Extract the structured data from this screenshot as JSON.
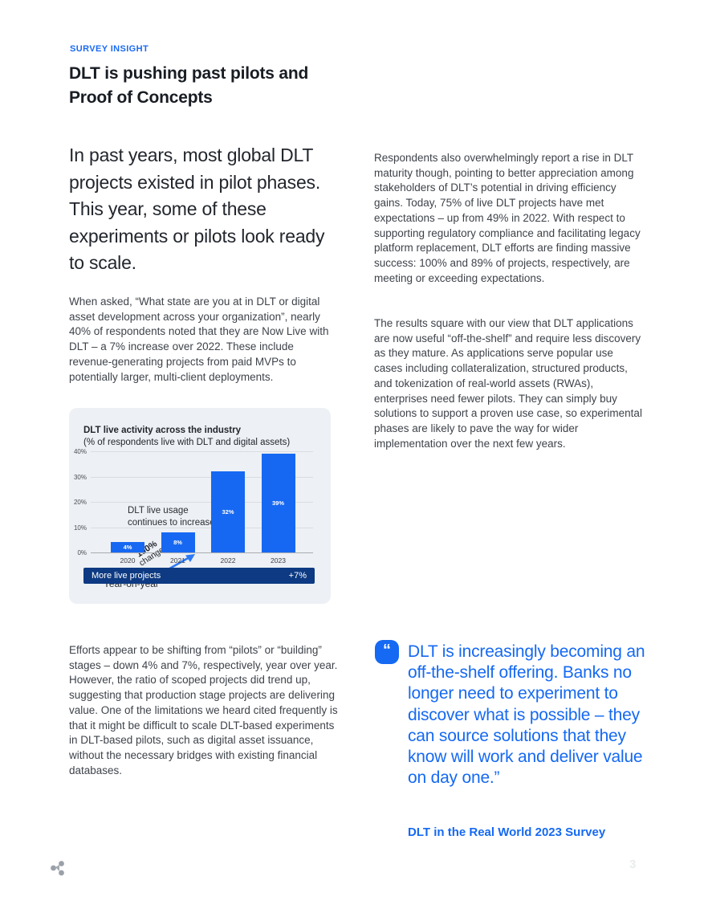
{
  "page": {
    "eyebrow": "SURVEY INSIGHT",
    "title": "DLT is pushing past pilots and Proof of Concepts",
    "page_number": "3"
  },
  "left_column": {
    "intro": "In past years, most global DLT projects existed in pilot phases. This year, some of these experiments or pilots look ready to scale.",
    "paragraph_1": "When asked, “What state are you at in DLT or digital asset development across your organization”, nearly 40% of respondents noted that they are Now Live with DLT – a 7% increase over 2022. These include revenue-generating projects from paid MVPs to potentially larger, multi-client deployments.",
    "paragraph_2": "Efforts appear to be shifting from “pilots” or “building” stages – down 4% and 7%, respectively, year over year. However, the ratio of scoped projects did trend up, suggesting that production stage projects are delivering value. One of the limitations we heard cited frequently is that it might be difficult to scale DLT-based experiments in DLT-based pilots, such as digital asset issuance, without the necessary bridges with existing financial databases."
  },
  "right_column": {
    "paragraph_1": "Respondents also overwhelmingly report a rise in DLT maturity though, pointing to better appreciation among stakeholders of DLT’s potential in driving efficiency gains. Today, 75% of live DLT projects have met expectations – up from 49% in 2022. With respect to supporting regulatory compliance and facilitating legacy platform replacement, DLT efforts are finding massive success: 100% and 89% of projects, respectively, are meeting or exceeding expectations.",
    "paragraph_2": "The results square with our view that DLT applications are now useful “off-the-shelf” and require less discovery as they mature. As applications serve popular use cases including collateralization, structured products, and tokenization of real-world assets (RWAs), enterprises need fewer pilots. They can simply buy solutions to support a proven use case, so experimental phases are likely to pave the way for wider implementation over the next few years."
  },
  "quote": {
    "mark": "“",
    "text": "DLT is increasingly becoming an off-the-shelf offering. Banks no longer need to experiment to discover what is possible – they can source solutions that they know will work and deliver value on day one.”",
    "attribution": "DLT in the Real World 2023 Survey"
  },
  "chart_data": {
    "type": "bar",
    "title": "DLT live activity across the industry",
    "subtitle": "(% of respondents live with DLT and digital assets)",
    "categories": [
      "2020",
      "2021",
      "2022",
      "2023"
    ],
    "values": [
      4,
      8,
      32,
      39
    ],
    "value_labels": [
      "4%",
      "8%",
      "32%",
      "39%"
    ],
    "yticks": [
      "40%",
      "30%",
      "20%",
      "10%",
      "0%"
    ],
    "ylim": [
      0,
      40
    ],
    "grid": true,
    "legend": "none",
    "annotation": "DLT live usage continues to increase",
    "arrow_label_bold": "100%",
    "arrow_label_rest": "change",
    "axis_label": "Year-on-year",
    "banner_left": "More live projects",
    "banner_right": "+7%",
    "bar_color": "#1668f2",
    "banner_color": "#0d3a82"
  },
  "colors": {
    "accent_blue": "#1569f2",
    "banner_navy": "#0d3a82",
    "heading": "#181c23",
    "body_text": "#3e434a",
    "card_background": "#edf0f4"
  }
}
